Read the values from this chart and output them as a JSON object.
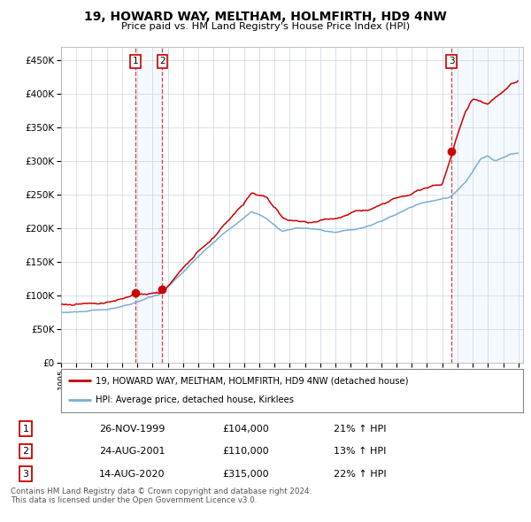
{
  "title": "19, HOWARD WAY, MELTHAM, HOLMFIRTH, HD9 4NW",
  "subtitle": "Price paid vs. HM Land Registry's House Price Index (HPI)",
  "sale_dates_num": [
    1999.896,
    2001.646,
    2020.621
  ],
  "sale_prices": [
    104000,
    110000,
    315000
  ],
  "sale_labels": [
    "1",
    "2",
    "3"
  ],
  "legend_price_paid": "19, HOWARD WAY, MELTHAM, HOLMFIRTH, HD9 4NW (detached house)",
  "legend_hpi": "HPI: Average price, detached house, Kirklees",
  "table_rows": [
    [
      "1",
      "26-NOV-1999",
      "£104,000",
      "21% ↑ HPI"
    ],
    [
      "2",
      "24-AUG-2001",
      "£110,000",
      "13% ↑ HPI"
    ],
    [
      "3",
      "14-AUG-2020",
      "£315,000",
      "22% ↑ HPI"
    ]
  ],
  "footer": "Contains HM Land Registry data © Crown copyright and database right 2024.\nThis data is licensed under the Open Government Licence v3.0.",
  "price_paid_color": "#cc0000",
  "hpi_color": "#7aaed6",
  "sale_marker_color": "#cc0000",
  "background_color": "#ffffff",
  "grid_color": "#c8d4e0",
  "shade_color": "#d8e8f8",
  "vline_color": "#cc0000",
  "ylim": [
    0,
    470000
  ],
  "yticks": [
    0,
    50000,
    100000,
    150000,
    200000,
    250000,
    300000,
    350000,
    400000,
    450000
  ],
  "start_year": 1995,
  "end_year": 2025
}
